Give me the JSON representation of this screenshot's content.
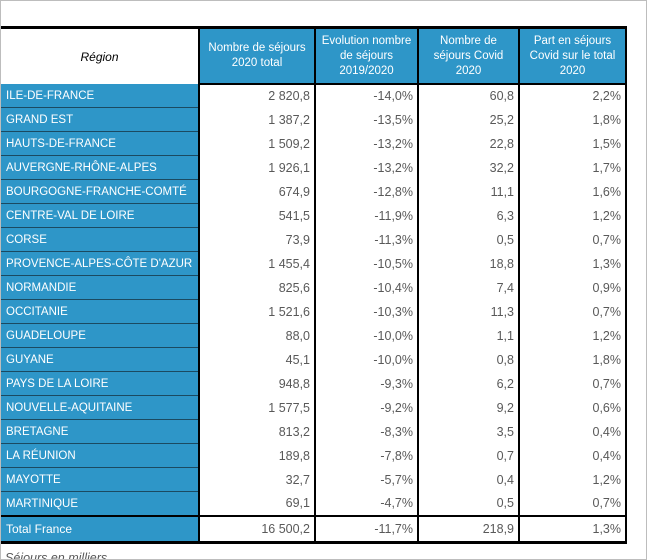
{
  "colors": {
    "header_blue": "#2E96C8",
    "row_separator_blue": "#1B4A61",
    "value_text_gray": "#595959",
    "border_black": "#000000"
  },
  "chart_data": {
    "type": "table",
    "region_header": "Région",
    "columns": [
      "Nombre de séjours 2020 total",
      "Evolution nombre de séjours 2019/2020",
      "Nombre de séjours Covid 2020",
      "Part en séjours Covid sur le total 2020"
    ],
    "rows": [
      {
        "region": "ILE-DE-FRANCE",
        "total": "2 820,8",
        "evolution": "-14,0%",
        "covid": "60,8",
        "part": "2,2%"
      },
      {
        "region": "GRAND EST",
        "total": "1 387,2",
        "evolution": "-13,5%",
        "covid": "25,2",
        "part": "1,8%"
      },
      {
        "region": "HAUTS-DE-FRANCE",
        "total": "1 509,2",
        "evolution": "-13,2%",
        "covid": "22,8",
        "part": "1,5%"
      },
      {
        "region": "AUVERGNE-RHÔNE-ALPES",
        "total": "1 926,1",
        "evolution": "-13,2%",
        "covid": "32,2",
        "part": "1,7%"
      },
      {
        "region": "BOURGOGNE-FRANCHE-COMTÉ",
        "total": "674,9",
        "evolution": "-12,8%",
        "covid": "11,1",
        "part": "1,6%"
      },
      {
        "region": "CENTRE-VAL DE LOIRE",
        "total": "541,5",
        "evolution": "-11,9%",
        "covid": "6,3",
        "part": "1,2%"
      },
      {
        "region": "CORSE",
        "total": "73,9",
        "evolution": "-11,3%",
        "covid": "0,5",
        "part": "0,7%"
      },
      {
        "region": "PROVENCE-ALPES-CÔTE D'AZUR",
        "total": "1 455,4",
        "evolution": "-10,5%",
        "covid": "18,8",
        "part": "1,3%"
      },
      {
        "region": "NORMANDIE",
        "total": "825,6",
        "evolution": "-10,4%",
        "covid": "7,4",
        "part": "0,9%"
      },
      {
        "region": "OCCITANIE",
        "total": "1 521,6",
        "evolution": "-10,3%",
        "covid": "11,3",
        "part": "0,7%"
      },
      {
        "region": "GUADELOUPE",
        "total": "88,0",
        "evolution": "-10,0%",
        "covid": "1,1",
        "part": "1,2%"
      },
      {
        "region": "GUYANE",
        "total": "45,1",
        "evolution": "-10,0%",
        "covid": "0,8",
        "part": "1,8%"
      },
      {
        "region": "PAYS DE LA LOIRE",
        "total": "948,8",
        "evolution": "-9,3%",
        "covid": "6,2",
        "part": "0,7%"
      },
      {
        "region": "NOUVELLE-AQUITAINE",
        "total": "1 577,5",
        "evolution": "-9,2%",
        "covid": "9,2",
        "part": "0,6%"
      },
      {
        "region": "BRETAGNE",
        "total": "813,2",
        "evolution": "-8,3%",
        "covid": "3,5",
        "part": "0,4%"
      },
      {
        "region": "LA RÉUNION",
        "total": "189,8",
        "evolution": "-7,8%",
        "covid": "0,7",
        "part": "0,4%"
      },
      {
        "region": "MAYOTTE",
        "total": "32,7",
        "evolution": "-5,7%",
        "covid": "0,4",
        "part": "1,2%"
      },
      {
        "region": "MARTINIQUE",
        "total": "69,1",
        "evolution": "-4,7%",
        "covid": "0,5",
        "part": "0,7%"
      }
    ],
    "total_row": {
      "label": "Total France",
      "total": "16 500,2",
      "evolution": "-11,7%",
      "covid": "218,9",
      "part": "1,3%"
    },
    "footnote": "Séjours en milliers"
  }
}
